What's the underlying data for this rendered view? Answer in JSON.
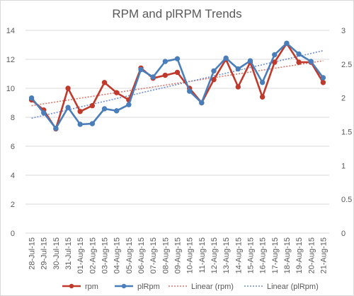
{
  "chart_data": {
    "type": "line",
    "title": "RPM and plRPM Trends",
    "xlabel": "",
    "ylabel": "",
    "categories": [
      "28-Jul-15",
      "29-Jul-15",
      "30-Jul-15",
      "31-Jul-15",
      "01-Aug-15",
      "02-Aug-15",
      "03-Aug-15",
      "04-Aug-15",
      "05-Aug-15",
      "06-Aug-15",
      "07-Aug-15",
      "08-Aug-15",
      "09-Aug-15",
      "10-Aug-15",
      "11-Aug-15",
      "12-Aug-15",
      "13-Aug-15",
      "14-Aug-15",
      "15-Aug-15",
      "16-Aug-15",
      "17-Aug-15",
      "18-Aug-15",
      "19-Aug-15",
      "20-Aug-15",
      "21-Aug-15"
    ],
    "ylim": [
      0,
      14
    ],
    "y2lim": [
      0,
      3
    ],
    "yticks": [
      "0",
      "2",
      "4",
      "6",
      "8",
      "10",
      "12",
      "14"
    ],
    "y2ticks": [
      "0",
      "0.5",
      "1",
      "1.5",
      "2",
      "2.5",
      "3"
    ],
    "series": [
      {
        "name": "rpm",
        "axis": "left",
        "color": "#c0392b",
        "values": [
          9.2,
          8.5,
          7.2,
          10.0,
          8.4,
          8.8,
          10.4,
          9.7,
          9.2,
          11.4,
          10.7,
          10.9,
          11.1,
          10.0,
          9.0,
          10.6,
          12.0,
          10.1,
          11.8,
          9.4,
          11.8,
          13.1,
          11.8,
          11.8,
          10.4
        ]
      },
      {
        "name": "plRpm",
        "axis": "right",
        "color": "#4a7ebb",
        "values": [
          2.0,
          1.78,
          1.55,
          1.86,
          1.61,
          1.62,
          1.84,
          1.81,
          1.9,
          2.42,
          2.31,
          2.54,
          2.58,
          2.1,
          1.93,
          2.4,
          2.59,
          2.43,
          2.55,
          2.23,
          2.64,
          2.81,
          2.65,
          2.54,
          2.3
        ]
      }
    ],
    "trendlines": [
      {
        "name": "Linear (rpm)",
        "axis": "left",
        "color": "#d9776a",
        "start": 8.8,
        "end": 11.9
      },
      {
        "name": "Linear (plRpm)",
        "axis": "right",
        "color": "#6f8fd1",
        "start": 1.7,
        "end": 2.7
      }
    ],
    "legend_position": "bottom",
    "grid": true
  }
}
